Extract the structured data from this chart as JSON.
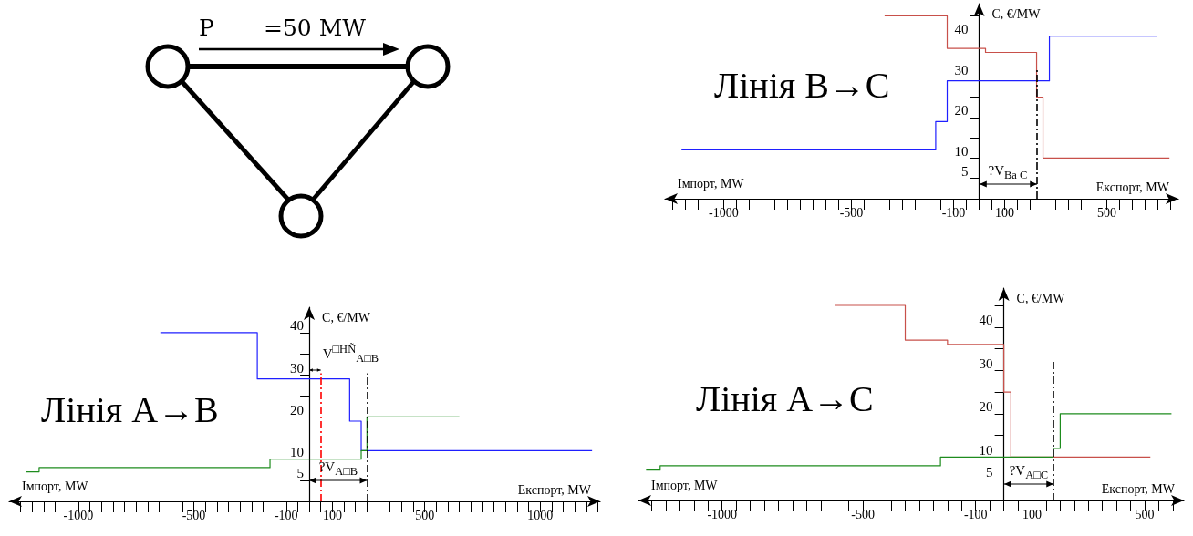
{
  "chart_data": [
    {
      "type": "other",
      "annotations": [
        "P",
        "=50 MW"
      ]
    },
    {
      "type": "step",
      "title": "Лінія B→C",
      "xlabel": "Експорт, MW",
      "ylabel": "C, €/MW",
      "annotations": [
        "Імпорт, MW",
        {
          "text": "?V$_{Ba C}$",
          "x": 225,
          "y": 3.7
        }
      ],
      "xlim": [
        -1230,
        780
      ],
      "ylim": [
        0,
        48
      ],
      "xticks": [
        {
          "value": -1200,
          "label": null
        },
        {
          "value": -1150,
          "label": null
        },
        {
          "value": -1100,
          "label": null
        },
        {
          "value": -1050,
          "label": null
        },
        -1000,
        {
          "value": -950,
          "label": null
        },
        {
          "value": -900,
          "label": null
        },
        {
          "value": -850,
          "label": null
        },
        {
          "value": -800,
          "label": null
        },
        {
          "value": -750,
          "label": null
        },
        {
          "value": -700,
          "label": null
        },
        {
          "value": -650,
          "label": null
        },
        {
          "value": -600,
          "label": null
        },
        {
          "value": -550,
          "label": null
        },
        -500,
        {
          "value": -450,
          "label": null
        },
        {
          "value": -400,
          "label": null
        },
        {
          "value": -350,
          "label": null
        },
        {
          "value": -300,
          "label": null
        },
        {
          "value": -250,
          "label": null
        },
        {
          "value": -200,
          "label": null
        },
        {
          "value": -150,
          "label": null
        },
        -100,
        {
          "value": -50,
          "label": null
        },
        {
          "value": 0,
          "label": null
        },
        {
          "value": 50,
          "label": null
        },
        100,
        {
          "value": 150,
          "label": null
        },
        {
          "value": 200,
          "label": null
        },
        {
          "value": 250,
          "label": null
        },
        {
          "value": 300,
          "label": null
        },
        {
          "value": 350,
          "label": null
        },
        {
          "value": 400,
          "label": null
        },
        {
          "value": 450,
          "label": null
        },
        500,
        {
          "value": 550,
          "label": null
        },
        {
          "value": 600,
          "label": null
        },
        {
          "value": 650,
          "label": null
        },
        {
          "value": 700,
          "label": null
        },
        {
          "value": 750,
          "label": null
        }
      ],
      "yticks": [
        5,
        10,
        {
          "value": 15,
          "label": null
        },
        20,
        {
          "value": 25,
          "label": null
        },
        30,
        {
          "value": 35,
          "label": null
        },
        40,
        {
          "value": 45,
          "label": null
        }
      ],
      "ref_lines": [
        {
          "axis": "x",
          "value": 225,
          "color": "#000000",
          "line_style": "dashed"
        }
      ],
      "series": [
        {
          "color": "#1f1fff",
          "x": [
            -1165,
            -170,
            -125,
            275,
            695
          ],
          "values": [
            12,
            19,
            29,
            40,
            40
          ]
        },
        {
          "color": "#c8504a",
          "x": [
            -370,
            -125,
            25,
            225,
            250,
            745
          ],
          "values": [
            45,
            37,
            36,
            25,
            10,
            10
          ]
        }
      ]
    },
    {
      "type": "step",
      "title": "Лінія A→B",
      "xlabel": "Експорт, MW",
      "ylabel": "C, €/MW",
      "annotations": [
        "Імпорт, MW",
        {
          "text": "?V$_{A□B}$",
          "x": 250,
          "y": 5
        },
        {
          "text": "V$^{□HÑ}$$_{A□B}$",
          "x": 50,
          "y": 31
        }
      ],
      "xlim": [
        -1300,
        1260
      ],
      "ylim": [
        0,
        46
      ],
      "xticks": [
        {
          "value": -1250,
          "label": null
        },
        {
          "value": -1200,
          "label": null
        },
        {
          "value": -1150,
          "label": null
        },
        {
          "value": -1100,
          "label": null
        },
        {
          "value": -1050,
          "label": null
        },
        -1000,
        {
          "value": -950,
          "label": null
        },
        {
          "value": -900,
          "label": null
        },
        {
          "value": -850,
          "label": null
        },
        {
          "value": -800,
          "label": null
        },
        {
          "value": -750,
          "label": null
        },
        {
          "value": -700,
          "label": null
        },
        {
          "value": -650,
          "label": null
        },
        {
          "value": -600,
          "label": null
        },
        {
          "value": -550,
          "label": null
        },
        -500,
        {
          "value": -450,
          "label": null
        },
        {
          "value": -400,
          "label": null
        },
        {
          "value": -350,
          "label": null
        },
        {
          "value": -300,
          "label": null
        },
        {
          "value": -250,
          "label": null
        },
        {
          "value": -200,
          "label": null
        },
        {
          "value": -150,
          "label": null
        },
        -100,
        {
          "value": -50,
          "label": null
        },
        {
          "value": 0,
          "label": null
        },
        {
          "value": 50,
          "label": null
        },
        100,
        {
          "value": 150,
          "label": null
        },
        {
          "value": 200,
          "label": null
        },
        {
          "value": 250,
          "label": null
        },
        {
          "value": 300,
          "label": null
        },
        {
          "value": 350,
          "label": null
        },
        {
          "value": 400,
          "label": null
        },
        {
          "value": 450,
          "label": null
        },
        500,
        {
          "value": 550,
          "label": null
        },
        {
          "value": 600,
          "label": null
        },
        {
          "value": 650,
          "label": null
        },
        {
          "value": 700,
          "label": null
        },
        {
          "value": 750,
          "label": null
        },
        {
          "value": 800,
          "label": null
        },
        {
          "value": 850,
          "label": null
        },
        {
          "value": 900,
          "label": null
        },
        {
          "value": 950,
          "label": null
        },
        1000,
        {
          "value": 1050,
          "label": null
        },
        {
          "value": 1100,
          "label": null
        },
        {
          "value": 1150,
          "label": null
        },
        {
          "value": 1200,
          "label": null
        },
        {
          "value": 1250,
          "label": null
        }
      ],
      "yticks": [
        5,
        10,
        {
          "value": 15,
          "label": null
        },
        20,
        {
          "value": 25,
          "label": null
        },
        30,
        {
          "value": 35,
          "label": null
        },
        40
      ],
      "ref_lines": [
        {
          "axis": "x",
          "value": 50,
          "color": "#ff0000",
          "line_style": "dashed"
        },
        {
          "axis": "x",
          "value": 250,
          "color": "#000000",
          "line_style": "dashed"
        }
      ],
      "series": [
        {
          "color": "#1f1fff",
          "x": [
            -645,
            -225,
            175,
            225,
            1225
          ],
          "values": [
            40,
            29,
            19,
            12,
            12
          ]
        },
        {
          "color": "#1e8c1e",
          "x": [
            -1225,
            -1170,
            -170,
            225,
            250,
            650
          ],
          "values": [
            7,
            8,
            10,
            12,
            20,
            20
          ]
        }
      ]
    },
    {
      "type": "step",
      "title": "Лінія A→C",
      "xlabel": "Експорт, MW",
      "ylabel": "C, €/MW",
      "annotations": [
        "Імпорт, MW",
        {
          "text": "?V$_{A□C}$",
          "x": 175,
          "y": 3.7
        }
      ],
      "xlim": [
        -1297,
        639
      ],
      "ylim": [
        0,
        49
      ],
      "xticks": [
        {
          "value": -1250,
          "label": null
        },
        {
          "value": -1200,
          "label": null
        },
        {
          "value": -1150,
          "label": null
        },
        {
          "value": -1100,
          "label": null
        },
        {
          "value": -1050,
          "label": null
        },
        -1000,
        {
          "value": -950,
          "label": null
        },
        {
          "value": -900,
          "label": null
        },
        {
          "value": -850,
          "label": null
        },
        {
          "value": -800,
          "label": null
        },
        {
          "value": -750,
          "label": null
        },
        {
          "value": -700,
          "label": null
        },
        {
          "value": -650,
          "label": null
        },
        {
          "value": -600,
          "label": null
        },
        {
          "value": -550,
          "label": null
        },
        -500,
        {
          "value": -450,
          "label": null
        },
        {
          "value": -400,
          "label": null
        },
        {
          "value": -350,
          "label": null
        },
        {
          "value": -300,
          "label": null
        },
        {
          "value": -250,
          "label": null
        },
        {
          "value": -200,
          "label": null
        },
        {
          "value": -150,
          "label": null
        },
        -100,
        {
          "value": -50,
          "label": null
        },
        {
          "value": 0,
          "label": null
        },
        {
          "value": 50,
          "label": null
        },
        100,
        {
          "value": 150,
          "label": null
        },
        {
          "value": 200,
          "label": null
        },
        {
          "value": 250,
          "label": null
        },
        {
          "value": 300,
          "label": null
        },
        {
          "value": 350,
          "label": null
        },
        {
          "value": 400,
          "label": null
        },
        {
          "value": 450,
          "label": null
        },
        500,
        {
          "value": 550,
          "label": null
        },
        {
          "value": 600,
          "label": null
        }
      ],
      "yticks": [
        5,
        10,
        {
          "value": 15,
          "label": null
        },
        20,
        {
          "value": 25,
          "label": null
        },
        30,
        {
          "value": 35,
          "label": null
        },
        40,
        {
          "value": 45,
          "label": null
        }
      ],
      "ref_lines": [
        {
          "axis": "x",
          "value": 175,
          "color": "#000000",
          "line_style": "dashed"
        }
      ],
      "series": [
        {
          "color": "#c8504a",
          "x": [
            -600,
            -350,
            -200,
            0,
            25,
            520
          ],
          "values": [
            45,
            37,
            36,
            25,
            10,
            10
          ]
        },
        {
          "color": "#1e8c1e",
          "x": [
            -1270,
            -1220,
            -225,
            175,
            200,
            595
          ],
          "values": [
            7,
            8,
            10,
            12,
            20,
            20
          ]
        }
      ]
    }
  ]
}
